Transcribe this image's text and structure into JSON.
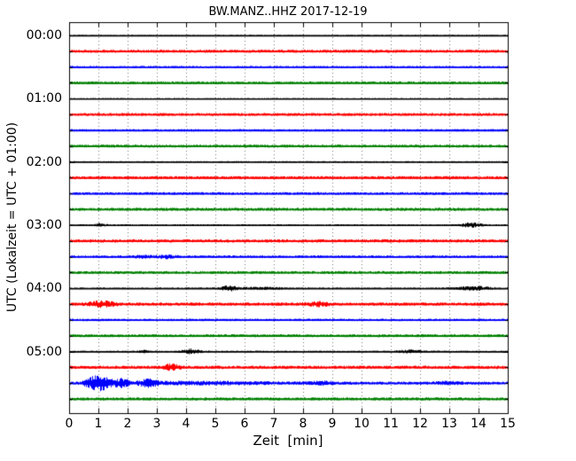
{
  "figure": {
    "title": "BW.MANZ..HHZ 2017-12-19",
    "xlabel": "Zeit  [min]",
    "ylabel": "UTC (Lokalzeit = UTC + 01:00)"
  },
  "chart_data": {
    "type": "line",
    "subtype": "seismogram-dayplot-helicorder",
    "title": "BW.MANZ..HHZ 2017-12-19",
    "xlabel": "Zeit  [min]",
    "ylabel": "UTC (Lokalzeit = UTC + 01:00)",
    "x_range": [
      0,
      15
    ],
    "x_ticks": [
      "0",
      "1",
      "2",
      "3",
      "4",
      "5",
      "6",
      "7",
      "8",
      "9",
      "10",
      "11",
      "12",
      "13",
      "14",
      "15"
    ],
    "minutes_per_line": 15,
    "grid": {
      "vertical_dotted": true,
      "horizontal": false
    },
    "legend": "none",
    "hour_labels": [
      {
        "label": "00:00",
        "row": 0
      },
      {
        "label": "01:00",
        "row": 4
      },
      {
        "label": "02:00",
        "row": 8
      },
      {
        "label": "03:00",
        "row": 12
      },
      {
        "label": "04:00",
        "row": 16
      },
      {
        "label": "05:00",
        "row": 20
      }
    ],
    "trace_colors": {
      "black": "#000000",
      "red": "#ff0000",
      "blue": "#0000ff",
      "green": "#008000"
    },
    "rows": [
      {
        "time": "00:00",
        "color": "black",
        "noise": 0.7,
        "events": []
      },
      {
        "time": "00:15",
        "color": "red",
        "noise": 1.6,
        "events": []
      },
      {
        "time": "00:30",
        "color": "blue",
        "noise": 1.2,
        "events": []
      },
      {
        "time": "00:45",
        "color": "green",
        "noise": 1.5,
        "events": []
      },
      {
        "time": "01:00",
        "color": "black",
        "noise": 0.7,
        "events": []
      },
      {
        "time": "01:15",
        "color": "red",
        "noise": 1.5,
        "events": []
      },
      {
        "time": "01:30",
        "color": "blue",
        "noise": 1.2,
        "events": []
      },
      {
        "time": "01:45",
        "color": "green",
        "noise": 1.5,
        "events": []
      },
      {
        "time": "02:00",
        "color": "black",
        "noise": 0.8,
        "events": []
      },
      {
        "time": "02:15",
        "color": "red",
        "noise": 1.6,
        "events": []
      },
      {
        "time": "02:30",
        "color": "blue",
        "noise": 1.4,
        "events": []
      },
      {
        "time": "02:45",
        "color": "green",
        "noise": 1.6,
        "events": []
      },
      {
        "time": "03:00",
        "color": "black",
        "noise": 0.9,
        "events": [
          [
            1.05,
            1.3,
            0.12
          ],
          [
            13.75,
            2.0,
            0.25
          ]
        ]
      },
      {
        "time": "03:15",
        "color": "red",
        "noise": 1.7,
        "events": []
      },
      {
        "time": "03:30",
        "color": "blue",
        "noise": 1.4,
        "events": [
          [
            2.55,
            1.0,
            0.18
          ],
          [
            3.3,
            1.3,
            0.22
          ]
        ]
      },
      {
        "time": "03:45",
        "color": "green",
        "noise": 1.5,
        "events": []
      },
      {
        "time": "04:00",
        "color": "black",
        "noise": 0.9,
        "events": [
          [
            5.45,
            2.4,
            0.18
          ],
          [
            6.5,
            0.8,
            0.6
          ],
          [
            13.85,
            1.7,
            0.4
          ]
        ]
      },
      {
        "time": "04:15",
        "color": "red",
        "noise": 1.7,
        "events": [
          [
            1.1,
            2.6,
            0.3
          ],
          [
            8.5,
            1.5,
            0.3
          ]
        ]
      },
      {
        "time": "04:30",
        "color": "blue",
        "noise": 1.3,
        "events": []
      },
      {
        "time": "04:45",
        "color": "green",
        "noise": 1.5,
        "events": []
      },
      {
        "time": "05:00",
        "color": "black",
        "noise": 0.9,
        "events": [
          [
            2.55,
            1.0,
            0.12
          ],
          [
            4.15,
            2.4,
            0.22
          ],
          [
            11.65,
            1.3,
            0.3
          ]
        ]
      },
      {
        "time": "05:15",
        "color": "red",
        "noise": 1.7,
        "events": [
          [
            3.5,
            2.6,
            0.2
          ]
        ]
      },
      {
        "time": "05:30",
        "color": "blue",
        "noise": 1.6,
        "events": [
          [
            0.65,
            2.0,
            0.12
          ],
          [
            1.05,
            8.0,
            0.25
          ],
          [
            1.8,
            3.5,
            0.18
          ],
          [
            2.7,
            3.0,
            0.22
          ],
          [
            4.5,
            1.0,
            1.5
          ],
          [
            8.6,
            1.5,
            0.3
          ],
          [
            12.9,
            0.9,
            0.3
          ]
        ]
      },
      {
        "time": "05:45",
        "color": "green",
        "noise": 1.6,
        "events": []
      }
    ]
  }
}
